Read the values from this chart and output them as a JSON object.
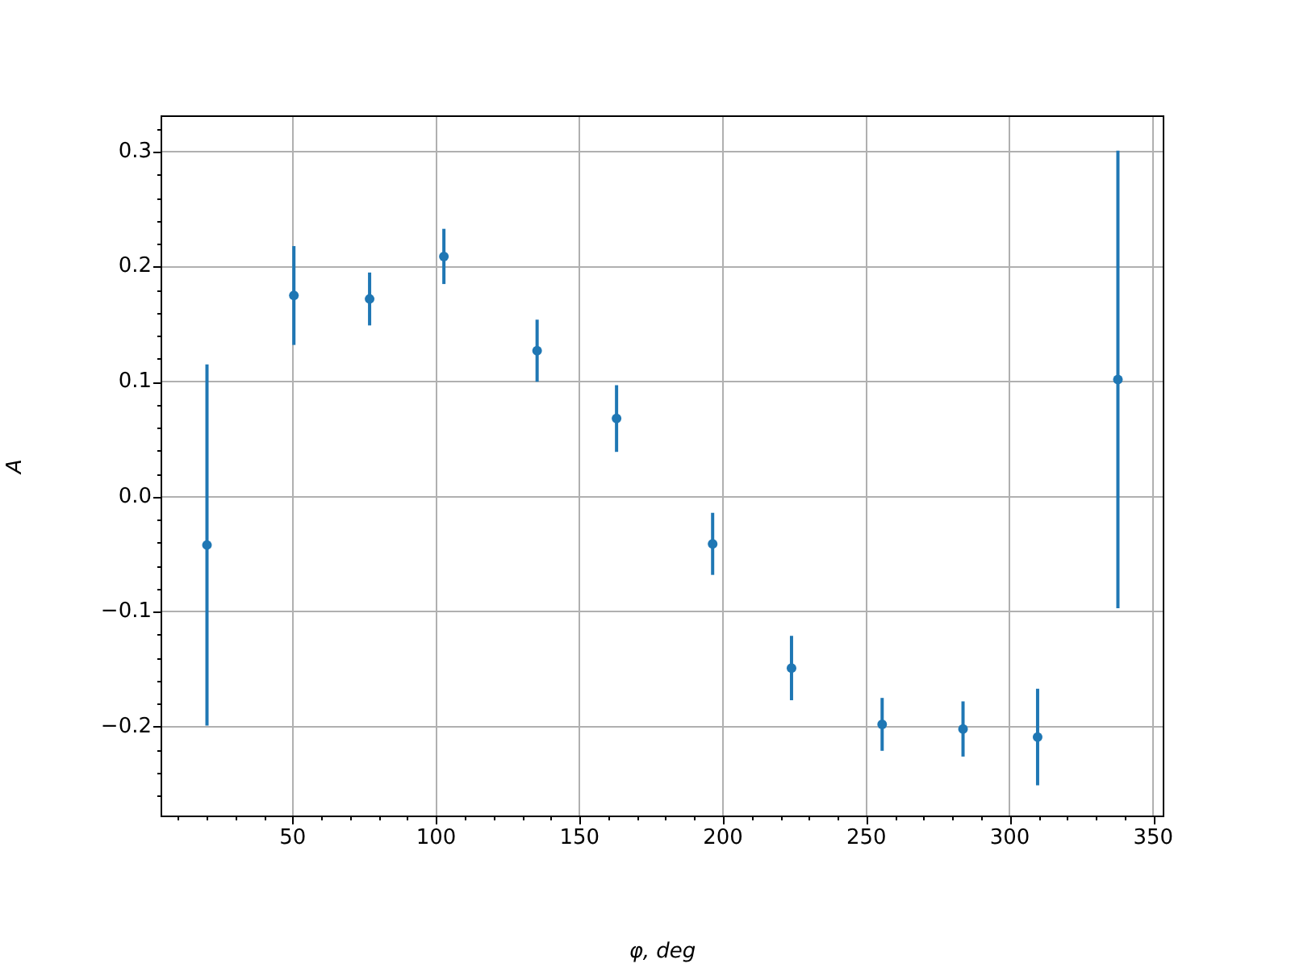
{
  "chart_data": {
    "type": "scatter",
    "xlabel": "φ, deg",
    "ylabel": "A",
    "x": [
      20.1,
      50.4,
      76.8,
      102.7,
      135.2,
      162.9,
      196.4,
      223.9,
      255.5,
      283.7,
      309.7,
      337.7
    ],
    "values": [
      -0.042,
      0.175,
      0.172,
      0.209,
      0.127,
      0.068,
      -0.041,
      -0.149,
      -0.198,
      -0.202,
      -0.209,
      0.102
    ],
    "errors": [
      0.157,
      0.043,
      0.023,
      0.024,
      0.027,
      0.029,
      0.027,
      0.028,
      0.023,
      0.024,
      0.042,
      0.199
    ],
    "color": "#1f77b4",
    "marker": "circle",
    "grid": true,
    "xlim": [
      4.2,
      353.6
    ],
    "xticks": [
      {
        "value": 10,
        "label": null
      },
      {
        "value": 20,
        "label": null
      },
      {
        "value": 30,
        "label": null
      },
      {
        "value": 40,
        "label": null
      },
      50,
      {
        "value": 60,
        "label": null
      },
      {
        "value": 70,
        "label": null
      },
      {
        "value": 80,
        "label": null
      },
      {
        "value": 90,
        "label": null
      },
      100,
      {
        "value": 110,
        "label": null
      },
      {
        "value": 120,
        "label": null
      },
      {
        "value": 130,
        "label": null
      },
      {
        "value": 140,
        "label": null
      },
      150,
      {
        "value": 160,
        "label": null
      },
      {
        "value": 170,
        "label": null
      },
      {
        "value": 180,
        "label": null
      },
      {
        "value": 190,
        "label": null
      },
      200,
      {
        "value": 210,
        "label": null
      },
      {
        "value": 220,
        "label": null
      },
      {
        "value": 230,
        "label": null
      },
      {
        "value": 240,
        "label": null
      },
      250,
      {
        "value": 260,
        "label": null
      },
      {
        "value": 270,
        "label": null
      },
      {
        "value": 280,
        "label": null
      },
      {
        "value": 290,
        "label": null
      },
      300,
      {
        "value": 310,
        "label": null
      },
      {
        "value": 320,
        "label": null
      },
      {
        "value": 330,
        "label": null
      },
      {
        "value": 340,
        "label": null
      },
      350
    ],
    "ylim": [
      -0.278,
      0.331
    ],
    "yticks": [
      {
        "value": -0.26,
        "label": null
      },
      {
        "value": -0.24,
        "label": null
      },
      {
        "value": -0.22,
        "label": null
      },
      {
        "value": -0.2,
        "label": "−0.2"
      },
      {
        "value": -0.18,
        "label": null
      },
      {
        "value": -0.16,
        "label": null
      },
      {
        "value": -0.14,
        "label": null
      },
      {
        "value": -0.12,
        "label": null
      },
      {
        "value": -0.1,
        "label": "−0.1"
      },
      {
        "value": -0.08,
        "label": null
      },
      {
        "value": -0.06,
        "label": null
      },
      {
        "value": -0.04,
        "label": null
      },
      {
        "value": -0.02,
        "label": null
      },
      {
        "value": 0,
        "label": "0.0"
      },
      {
        "value": 0.02,
        "label": null
      },
      {
        "value": 0.04,
        "label": null
      },
      {
        "value": 0.06,
        "label": null
      },
      {
        "value": 0.08,
        "label": null
      },
      0.1,
      {
        "value": 0.12,
        "label": null
      },
      {
        "value": 0.14,
        "label": null
      },
      {
        "value": 0.16,
        "label": null
      },
      {
        "value": 0.18,
        "label": null
      },
      0.2,
      {
        "value": 0.22,
        "label": null
      },
      {
        "value": 0.24,
        "label": null
      },
      {
        "value": 0.26,
        "label": null
      },
      {
        "value": 0.28,
        "label": null
      },
      0.3,
      {
        "value": 0.32,
        "label": null
      }
    ]
  }
}
